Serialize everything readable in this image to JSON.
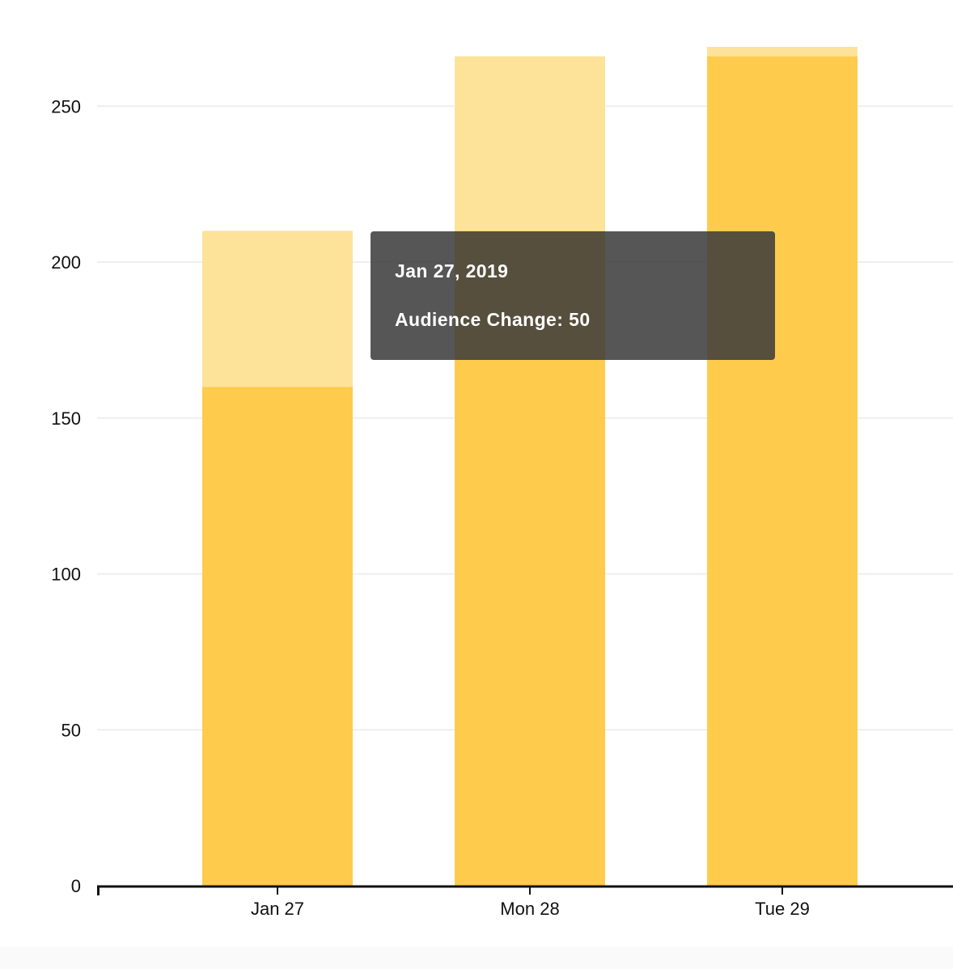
{
  "chart_data": {
    "type": "bar",
    "stacked": true,
    "categories": [
      "Jan 27",
      "Mon 28",
      "Tue 29"
    ],
    "series": [
      {
        "values": [
          160,
          210,
          266
        ],
        "color": "#FECB4D"
      },
      {
        "values": [
          50,
          56,
          3
        ],
        "color": "#FDE29A"
      }
    ],
    "y_ticks": [
      0,
      50,
      100,
      150,
      200,
      250
    ],
    "ylim": [
      0,
      275
    ],
    "grid": true,
    "legend": "none"
  },
  "tooltip": {
    "title": "Jan 27, 2019",
    "label": "Audience Change",
    "value": "50"
  }
}
